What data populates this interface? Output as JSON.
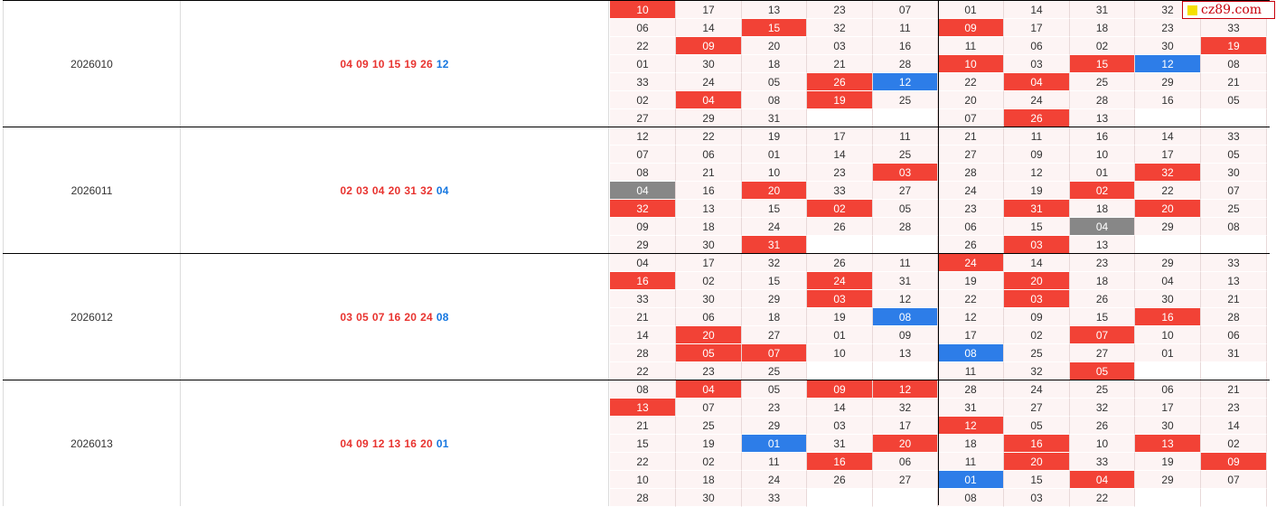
{
  "watermark": {
    "text": "cz89.com"
  },
  "colors": {
    "red": "#f24236",
    "blue": "#2d7de8",
    "gray": "#878787",
    "cell_bg": "#fdf4f4"
  },
  "rows": [
    {
      "period": "2026010",
      "red_balls": [
        "04",
        "09",
        "10",
        "15",
        "19",
        "26"
      ],
      "blue_ball": "12",
      "grid": [
        [
          [
            "10",
            "r"
          ],
          [
            "17",
            ""
          ],
          [
            "13",
            ""
          ],
          [
            "23",
            ""
          ],
          [
            "07",
            ""
          ],
          [
            "01",
            ""
          ],
          [
            "14",
            ""
          ],
          [
            "31",
            ""
          ],
          [
            "32",
            ""
          ],
          [
            "",
            ""
          ]
        ],
        [
          [
            "06",
            ""
          ],
          [
            "14",
            ""
          ],
          [
            "15",
            "r"
          ],
          [
            "32",
            ""
          ],
          [
            "11",
            ""
          ],
          [
            "09",
            "r"
          ],
          [
            "17",
            ""
          ],
          [
            "18",
            ""
          ],
          [
            "23",
            ""
          ],
          [
            "33",
            ""
          ]
        ],
        [
          [
            "22",
            ""
          ],
          [
            "09",
            "r"
          ],
          [
            "20",
            ""
          ],
          [
            "03",
            ""
          ],
          [
            "16",
            ""
          ],
          [
            "11",
            ""
          ],
          [
            "06",
            ""
          ],
          [
            "02",
            ""
          ],
          [
            "30",
            ""
          ],
          [
            "19",
            "r"
          ]
        ],
        [
          [
            "01",
            ""
          ],
          [
            "30",
            ""
          ],
          [
            "18",
            ""
          ],
          [
            "21",
            ""
          ],
          [
            "28",
            ""
          ],
          [
            "10",
            "r"
          ],
          [
            "03",
            ""
          ],
          [
            "15",
            "r"
          ],
          [
            "12",
            "b"
          ],
          [
            "08",
            ""
          ]
        ],
        [
          [
            "33",
            ""
          ],
          [
            "24",
            ""
          ],
          [
            "05",
            ""
          ],
          [
            "26",
            "r"
          ],
          [
            "12",
            "b"
          ],
          [
            "22",
            ""
          ],
          [
            "04",
            "r"
          ],
          [
            "25",
            ""
          ],
          [
            "29",
            ""
          ],
          [
            "21",
            ""
          ]
        ],
        [
          [
            "02",
            ""
          ],
          [
            "04",
            "r"
          ],
          [
            "08",
            ""
          ],
          [
            "19",
            "r"
          ],
          [
            "25",
            ""
          ],
          [
            "20",
            ""
          ],
          [
            "24",
            ""
          ],
          [
            "28",
            ""
          ],
          [
            "16",
            ""
          ],
          [
            "05",
            ""
          ]
        ],
        [
          [
            "27",
            ""
          ],
          [
            "29",
            ""
          ],
          [
            "31",
            ""
          ],
          [
            "",
            "e"
          ],
          [
            "",
            "e"
          ],
          [
            "07",
            ""
          ],
          [
            "26",
            "r"
          ],
          [
            "13",
            ""
          ],
          [
            "",
            "e"
          ],
          [
            "",
            "e"
          ]
        ]
      ]
    },
    {
      "period": "2026011",
      "red_balls": [
        "02",
        "03",
        "04",
        "20",
        "31",
        "32"
      ],
      "blue_ball": "04",
      "grid": [
        [
          [
            "12",
            ""
          ],
          [
            "22",
            ""
          ],
          [
            "19",
            ""
          ],
          [
            "17",
            ""
          ],
          [
            "11",
            ""
          ],
          [
            "21",
            ""
          ],
          [
            "11",
            ""
          ],
          [
            "16",
            ""
          ],
          [
            "14",
            ""
          ],
          [
            "33",
            ""
          ]
        ],
        [
          [
            "07",
            ""
          ],
          [
            "06",
            ""
          ],
          [
            "01",
            ""
          ],
          [
            "14",
            ""
          ],
          [
            "25",
            ""
          ],
          [
            "27",
            ""
          ],
          [
            "09",
            ""
          ],
          [
            "10",
            ""
          ],
          [
            "17",
            ""
          ],
          [
            "05",
            ""
          ]
        ],
        [
          [
            "08",
            ""
          ],
          [
            "21",
            ""
          ],
          [
            "10",
            ""
          ],
          [
            "23",
            ""
          ],
          [
            "03",
            "r"
          ],
          [
            "28",
            ""
          ],
          [
            "12",
            ""
          ],
          [
            "01",
            ""
          ],
          [
            "32",
            "r"
          ],
          [
            "30",
            ""
          ]
        ],
        [
          [
            "04",
            "g"
          ],
          [
            "16",
            ""
          ],
          [
            "20",
            "r"
          ],
          [
            "33",
            ""
          ],
          [
            "27",
            ""
          ],
          [
            "24",
            ""
          ],
          [
            "19",
            ""
          ],
          [
            "02",
            "r"
          ],
          [
            "22",
            ""
          ],
          [
            "07",
            ""
          ]
        ],
        [
          [
            "32",
            "r"
          ],
          [
            "13",
            ""
          ],
          [
            "15",
            ""
          ],
          [
            "02",
            "r"
          ],
          [
            "05",
            ""
          ],
          [
            "23",
            ""
          ],
          [
            "31",
            "r"
          ],
          [
            "18",
            ""
          ],
          [
            "20",
            "r"
          ],
          [
            "25",
            ""
          ]
        ],
        [
          [
            "09",
            ""
          ],
          [
            "18",
            ""
          ],
          [
            "24",
            ""
          ],
          [
            "26",
            ""
          ],
          [
            "28",
            ""
          ],
          [
            "06",
            ""
          ],
          [
            "15",
            ""
          ],
          [
            "04",
            "g"
          ],
          [
            "29",
            ""
          ],
          [
            "08",
            ""
          ]
        ],
        [
          [
            "29",
            ""
          ],
          [
            "30",
            ""
          ],
          [
            "31",
            "r"
          ],
          [
            "",
            "e"
          ],
          [
            "",
            "e"
          ],
          [
            "26",
            ""
          ],
          [
            "03",
            "r"
          ],
          [
            "13",
            ""
          ],
          [
            "",
            "e"
          ],
          [
            "",
            "e"
          ]
        ]
      ]
    },
    {
      "period": "2026012",
      "red_balls": [
        "03",
        "05",
        "07",
        "16",
        "20",
        "24"
      ],
      "blue_ball": "08",
      "grid": [
        [
          [
            "04",
            ""
          ],
          [
            "17",
            ""
          ],
          [
            "32",
            ""
          ],
          [
            "26",
            ""
          ],
          [
            "11",
            ""
          ],
          [
            "24",
            "r"
          ],
          [
            "14",
            ""
          ],
          [
            "23",
            ""
          ],
          [
            "29",
            ""
          ],
          [
            "33",
            ""
          ]
        ],
        [
          [
            "16",
            "r"
          ],
          [
            "02",
            ""
          ],
          [
            "15",
            ""
          ],
          [
            "24",
            "r"
          ],
          [
            "31",
            ""
          ],
          [
            "19",
            ""
          ],
          [
            "20",
            "r"
          ],
          [
            "18",
            ""
          ],
          [
            "04",
            ""
          ],
          [
            "13",
            ""
          ]
        ],
        [
          [
            "33",
            ""
          ],
          [
            "30",
            ""
          ],
          [
            "29",
            ""
          ],
          [
            "03",
            "r"
          ],
          [
            "12",
            ""
          ],
          [
            "22",
            ""
          ],
          [
            "03",
            "r"
          ],
          [
            "26",
            ""
          ],
          [
            "30",
            ""
          ],
          [
            "21",
            ""
          ]
        ],
        [
          [
            "21",
            ""
          ],
          [
            "06",
            ""
          ],
          [
            "18",
            ""
          ],
          [
            "19",
            ""
          ],
          [
            "08",
            "b"
          ],
          [
            "12",
            ""
          ],
          [
            "09",
            ""
          ],
          [
            "15",
            ""
          ],
          [
            "16",
            "r"
          ],
          [
            "28",
            ""
          ]
        ],
        [
          [
            "14",
            ""
          ],
          [
            "20",
            "r"
          ],
          [
            "27",
            ""
          ],
          [
            "01",
            ""
          ],
          [
            "09",
            ""
          ],
          [
            "17",
            ""
          ],
          [
            "02",
            ""
          ],
          [
            "07",
            "r"
          ],
          [
            "10",
            ""
          ],
          [
            "06",
            ""
          ]
        ],
        [
          [
            "28",
            ""
          ],
          [
            "05",
            "r"
          ],
          [
            "07",
            "r"
          ],
          [
            "10",
            ""
          ],
          [
            "13",
            ""
          ],
          [
            "08",
            "b"
          ],
          [
            "25",
            ""
          ],
          [
            "27",
            ""
          ],
          [
            "01",
            ""
          ],
          [
            "31",
            ""
          ]
        ],
        [
          [
            "22",
            ""
          ],
          [
            "23",
            ""
          ],
          [
            "25",
            ""
          ],
          [
            "",
            "e"
          ],
          [
            "",
            "e"
          ],
          [
            "11",
            ""
          ],
          [
            "32",
            ""
          ],
          [
            "05",
            "r"
          ],
          [
            "",
            "e"
          ],
          [
            "",
            "e"
          ]
        ]
      ]
    },
    {
      "period": "2026013",
      "red_balls": [
        "04",
        "09",
        "12",
        "13",
        "16",
        "20"
      ],
      "blue_ball": "01",
      "grid": [
        [
          [
            "08",
            ""
          ],
          [
            "04",
            "r"
          ],
          [
            "05",
            ""
          ],
          [
            "09",
            "r"
          ],
          [
            "12",
            "r"
          ],
          [
            "28",
            ""
          ],
          [
            "24",
            ""
          ],
          [
            "25",
            ""
          ],
          [
            "06",
            ""
          ],
          [
            "21",
            ""
          ]
        ],
        [
          [
            "13",
            "r"
          ],
          [
            "07",
            ""
          ],
          [
            "23",
            ""
          ],
          [
            "14",
            ""
          ],
          [
            "32",
            ""
          ],
          [
            "31",
            ""
          ],
          [
            "27",
            ""
          ],
          [
            "32",
            ""
          ],
          [
            "17",
            ""
          ],
          [
            "23",
            ""
          ]
        ],
        [
          [
            "21",
            ""
          ],
          [
            "25",
            ""
          ],
          [
            "29",
            ""
          ],
          [
            "03",
            ""
          ],
          [
            "17",
            ""
          ],
          [
            "12",
            "r"
          ],
          [
            "05",
            ""
          ],
          [
            "26",
            ""
          ],
          [
            "30",
            ""
          ],
          [
            "14",
            ""
          ]
        ],
        [
          [
            "15",
            ""
          ],
          [
            "19",
            ""
          ],
          [
            "01",
            "b"
          ],
          [
            "31",
            ""
          ],
          [
            "20",
            "r"
          ],
          [
            "18",
            ""
          ],
          [
            "16",
            "r"
          ],
          [
            "10",
            ""
          ],
          [
            "13",
            "r"
          ],
          [
            "02",
            ""
          ]
        ],
        [
          [
            "22",
            ""
          ],
          [
            "02",
            ""
          ],
          [
            "11",
            ""
          ],
          [
            "16",
            "r"
          ],
          [
            "06",
            ""
          ],
          [
            "11",
            ""
          ],
          [
            "20",
            "r"
          ],
          [
            "33",
            ""
          ],
          [
            "19",
            ""
          ],
          [
            "09",
            "r"
          ]
        ],
        [
          [
            "10",
            ""
          ],
          [
            "18",
            ""
          ],
          [
            "24",
            ""
          ],
          [
            "26",
            ""
          ],
          [
            "27",
            ""
          ],
          [
            "01",
            "b"
          ],
          [
            "15",
            ""
          ],
          [
            "04",
            "r"
          ],
          [
            "29",
            ""
          ],
          [
            "07",
            ""
          ]
        ],
        [
          [
            "28",
            ""
          ],
          [
            "30",
            ""
          ],
          [
            "33",
            ""
          ],
          [
            "",
            "e"
          ],
          [
            "",
            "e"
          ],
          [
            "08",
            ""
          ],
          [
            "03",
            ""
          ],
          [
            "22",
            ""
          ],
          [
            "",
            "e"
          ],
          [
            "",
            "e"
          ]
        ]
      ]
    }
  ]
}
